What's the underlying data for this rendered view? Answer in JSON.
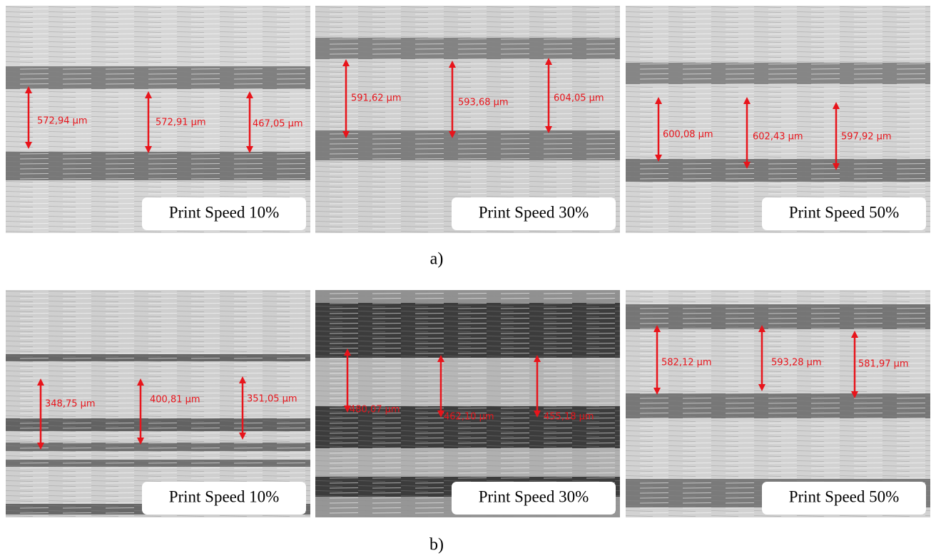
{
  "rows": [
    {
      "caption": "a)",
      "panels": [
        {
          "label": "Print Speed 10%",
          "measurements": [
            "572,94 μm",
            "572,91 μm",
            "467,05 μm"
          ]
        },
        {
          "label": "Print Speed 30%",
          "measurements": [
            "591,62 μm",
            "593,68 μm",
            "604,05 μm"
          ]
        },
        {
          "label": "Print Speed 50%",
          "measurements": [
            "600,08 μm",
            "602,43 μm",
            "597,92 μm"
          ]
        }
      ]
    },
    {
      "caption": "b)",
      "panels": [
        {
          "label": "Print Speed 10%",
          "measurements": [
            "348,75 μm",
            "400,81 μm",
            "351,05 μm"
          ]
        },
        {
          "label": "Print Speed 30%",
          "measurements": [
            "480,07 μm",
            "462,10 μm",
            "455,18 μm"
          ]
        },
        {
          "label": "Print Speed 50%",
          "measurements": [
            "582,12 μm",
            "593,28 μm",
            "581,97 μm"
          ]
        }
      ]
    }
  ]
}
